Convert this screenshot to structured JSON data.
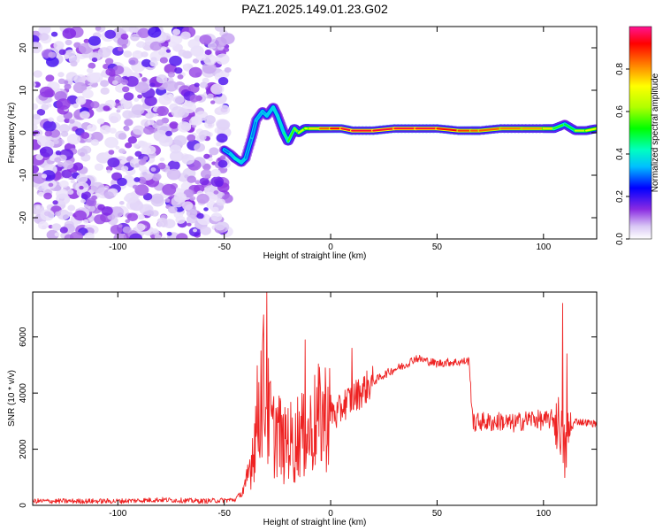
{
  "title": "PAZ1.2025.149.01.23.G02",
  "chart_data": [
    {
      "type": "heatmap",
      "xlabel": "Height of straight line (km)",
      "ylabel": "Frequency (Hz)",
      "xlim": [
        -140,
        125
      ],
      "ylim": [
        -25,
        25
      ],
      "xticks": [
        -100,
        -50,
        0,
        50,
        100
      ],
      "yticks": [
        -20,
        -10,
        0,
        10,
        20
      ],
      "colorbar": {
        "label": "Normalized spectral amplitude",
        "range": [
          0,
          1
        ],
        "ticks": [
          0.0,
          0.2,
          0.4,
          0.6,
          0.8
        ]
      },
      "ridge": {
        "x": [
          -50,
          -47,
          -45,
          -42,
          -40,
          -37,
          -35,
          -32,
          -30,
          -27,
          -25,
          -22,
          -20,
          -17,
          -15,
          -12,
          -10,
          -5,
          0,
          5,
          10,
          20,
          30,
          40,
          50,
          60,
          66,
          70,
          80,
          90,
          100,
          105,
          110,
          115,
          120,
          125
        ],
        "freq": [
          -4,
          -5,
          -6,
          -7,
          -6,
          -1,
          3,
          5,
          4,
          6,
          4,
          0,
          -2,
          1,
          0,
          1,
          1,
          1,
          1,
          1,
          0.5,
          0.5,
          1,
          1,
          1,
          0.5,
          0.5,
          0.5,
          1,
          1,
          1,
          1,
          2,
          0.5,
          0.5,
          1
        ],
        "amplitude": [
          0.3,
          0.3,
          0.4,
          0.4,
          0.3,
          0.3,
          0.3,
          0.35,
          0.3,
          0.4,
          0.35,
          0.4,
          0.5,
          0.6,
          0.6,
          0.7,
          0.7,
          0.8,
          0.9,
          0.95,
          0.95,
          0.95,
          0.95,
          0.95,
          0.95,
          0.9,
          0.85,
          0.85,
          0.85,
          0.8,
          0.8,
          0.7,
          0.4,
          0.6,
          0.7,
          0.7
        ]
      }
    },
    {
      "type": "line",
      "xlabel": "Height of straight line (km)",
      "ylabel": "SNR (10 * v/v)",
      "xlim": [
        -140,
        125
      ],
      "ylim": [
        0,
        7600
      ],
      "xticks": [
        -100,
        -50,
        0,
        50,
        100
      ],
      "yticks": [
        0,
        2000,
        4000,
        6000
      ],
      "grid": false,
      "series": [
        {
          "color": "#ee2222",
          "x": [
            -140,
            -120,
            -100,
            -80,
            -60,
            -45,
            -40,
            -37,
            -35,
            -32,
            -30,
            -27,
            -25,
            -22,
            -20,
            -17,
            -15,
            -12,
            -10,
            -7,
            -5,
            0,
            3,
            6,
            10,
            15,
            20,
            25,
            30,
            35,
            40,
            45,
            50,
            55,
            60,
            65,
            66,
            67,
            70,
            75,
            80,
            85,
            90,
            95,
            100,
            105,
            108,
            110,
            112,
            115,
            120,
            125
          ],
          "y": [
            150,
            150,
            150,
            200,
            150,
            200,
            600,
            1800,
            2800,
            4500,
            3500,
            2500,
            2800,
            2000,
            2500,
            2000,
            2700,
            2300,
            2600,
            3000,
            3100,
            3400,
            3200,
            3600,
            3800,
            4100,
            4400,
            4650,
            4850,
            5000,
            5250,
            5150,
            5050,
            5100,
            5100,
            5150,
            4000,
            2900,
            3000,
            2950,
            3000,
            2900,
            3000,
            3100,
            3000,
            3100,
            2800,
            1800,
            2600,
            3000,
            2950,
            2900
          ],
          "spikes": [
            {
              "x": -30,
              "y": 7600
            },
            {
              "x": -12,
              "y": 5900
            },
            {
              "x": 10,
              "y": 5600
            },
            {
              "x": 109,
              "y": 7200
            },
            {
              "x": 111,
              "y": 5400
            }
          ]
        }
      ]
    }
  ]
}
